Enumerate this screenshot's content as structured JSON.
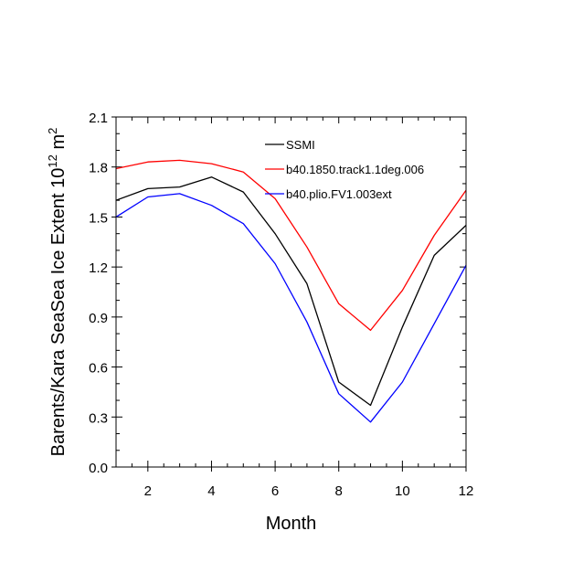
{
  "chart_data": {
    "type": "line",
    "title": "",
    "xlabel": "Month",
    "ylabel_main": "Barents/Kara SeaSea Ice Extent 10",
    "ylabel_exp": "12",
    "ylabel_unit": " m",
    "ylabel_unit_exp": "2",
    "xlim": [
      1,
      12
    ],
    "ylim": [
      0.0,
      2.1
    ],
    "xticks": [
      2,
      4,
      6,
      8,
      10,
      12
    ],
    "xtick_labels": [
      "2",
      "4",
      "6",
      "8",
      "10",
      "12"
    ],
    "yticks": [
      0.0,
      0.3,
      0.6,
      0.9,
      1.2,
      1.5,
      1.8,
      2.1
    ],
    "ytick_labels": [
      "0.0",
      "0.3",
      "0.6",
      "0.9",
      "1.2",
      "1.5",
      "1.8",
      "2.1"
    ],
    "grid": false,
    "legend_position": "top-right",
    "x": [
      1,
      2,
      3,
      4,
      5,
      6,
      7,
      8,
      9,
      10,
      11,
      12
    ],
    "series": [
      {
        "name": "SSMI",
        "color": "#000000",
        "values": [
          1.6,
          1.67,
          1.68,
          1.74,
          1.65,
          1.4,
          1.1,
          0.51,
          0.37,
          0.84,
          1.27,
          1.45
        ]
      },
      {
        "name": "b40.1850.track1.1deg.006",
        "color": "#ff0000",
        "values": [
          1.79,
          1.83,
          1.84,
          1.82,
          1.77,
          1.61,
          1.32,
          0.98,
          0.82,
          1.06,
          1.39,
          1.66
        ]
      },
      {
        "name": "b40.plio.FV1.003ext",
        "color": "#0000ff",
        "values": [
          1.5,
          1.62,
          1.64,
          1.57,
          1.46,
          1.22,
          0.87,
          0.44,
          0.27,
          0.51,
          0.86,
          1.21
        ]
      }
    ]
  }
}
